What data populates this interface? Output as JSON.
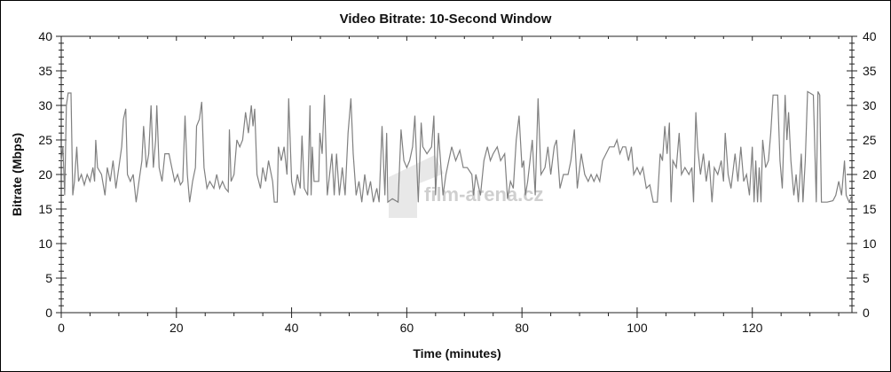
{
  "chart_data": {
    "type": "line",
    "title": "Video Bitrate: 10-Second Window",
    "xlabel": "Time (minutes)",
    "ylabel": "Bitrate (Mbps)",
    "xlim": [
      0,
      137.3
    ],
    "ylim": [
      0,
      40
    ],
    "x_ticks": [
      0,
      20,
      40,
      60,
      80,
      100,
      120
    ],
    "x_tick_labels": [
      "0",
      "20",
      "40",
      "60",
      "80",
      "100",
      "120"
    ],
    "y_ticks": [
      0,
      5,
      10,
      15,
      20,
      25,
      30,
      35,
      40
    ],
    "y_tick_labels": [
      "0",
      "5",
      "10",
      "15",
      "20",
      "25",
      "30",
      "35",
      "40"
    ],
    "right_axis_mirrors_left": true,
    "grid": false,
    "line_color": "#808080",
    "watermark": "film-arena.cz",
    "series": [
      {
        "points": [
          [
            0,
            22
          ],
          [
            0.3,
            24
          ],
          [
            0.6,
            17
          ],
          [
            0.9,
            30
          ],
          [
            1.2,
            31.8
          ],
          [
            1.7,
            31.8
          ],
          [
            2,
            17
          ],
          [
            2.3,
            19
          ],
          [
            2.7,
            24
          ],
          [
            3,
            19
          ],
          [
            3.5,
            20
          ],
          [
            4,
            18.5
          ],
          [
            4.5,
            20
          ],
          [
            5,
            19
          ],
          [
            5.5,
            21
          ],
          [
            5.8,
            19
          ],
          [
            6,
            25
          ],
          [
            6.3,
            21
          ],
          [
            7,
            20
          ],
          [
            7.6,
            17
          ],
          [
            8,
            21
          ],
          [
            8.5,
            19
          ],
          [
            9,
            22
          ],
          [
            9.5,
            18
          ],
          [
            10,
            21
          ],
          [
            10.5,
            24
          ],
          [
            10.8,
            28
          ],
          [
            11.2,
            29.5
          ],
          [
            11.5,
            20
          ],
          [
            12,
            19
          ],
          [
            12.5,
            20
          ],
          [
            13,
            16
          ],
          [
            13.5,
            19
          ],
          [
            14,
            22
          ],
          [
            14.3,
            27
          ],
          [
            14.8,
            21
          ],
          [
            15.2,
            23
          ],
          [
            15.6,
            30
          ],
          [
            16,
            21
          ],
          [
            16.4,
            25
          ],
          [
            16.6,
            30
          ],
          [
            17,
            21
          ],
          [
            17.5,
            19
          ],
          [
            18,
            23
          ],
          [
            18.7,
            23
          ],
          [
            19.2,
            21
          ],
          [
            19.7,
            19
          ],
          [
            20.2,
            20
          ],
          [
            20.7,
            18.5
          ],
          [
            21.1,
            19
          ],
          [
            21.5,
            28.5
          ],
          [
            21.9,
            20
          ],
          [
            22.3,
            16
          ],
          [
            22.8,
            19
          ],
          [
            23.3,
            21
          ],
          [
            23.5,
            27
          ],
          [
            24,
            28
          ],
          [
            24.4,
            30.5
          ],
          [
            24.8,
            21
          ],
          [
            25.3,
            18
          ],
          [
            25.8,
            19
          ],
          [
            26.5,
            18
          ],
          [
            27,
            20
          ],
          [
            27.5,
            18
          ],
          [
            28,
            19
          ],
          [
            28.5,
            18
          ],
          [
            29,
            17.5
          ],
          [
            29.2,
            26.5
          ],
          [
            29.5,
            19
          ],
          [
            30,
            20
          ],
          [
            30.5,
            25
          ],
          [
            31,
            24
          ],
          [
            31.5,
            25
          ],
          [
            32,
            29
          ],
          [
            32.5,
            26
          ],
          [
            33,
            30
          ],
          [
            33.3,
            27
          ],
          [
            33.6,
            29.5
          ],
          [
            34,
            20
          ],
          [
            34.6,
            18
          ],
          [
            35,
            21
          ],
          [
            35.5,
            19
          ],
          [
            36,
            22
          ],
          [
            36.7,
            19
          ],
          [
            37,
            16
          ],
          [
            37.5,
            16
          ],
          [
            37.7,
            24
          ],
          [
            38.2,
            22
          ],
          [
            38.7,
            24
          ],
          [
            39.2,
            20
          ],
          [
            39.5,
            31
          ],
          [
            40,
            19
          ],
          [
            40.5,
            17
          ],
          [
            41,
            20
          ],
          [
            41.5,
            18
          ],
          [
            41.8,
            25.6
          ],
          [
            42.2,
            18
          ],
          [
            42.8,
            17
          ],
          [
            43.2,
            30
          ],
          [
            43.4,
            17
          ],
          [
            43.6,
            24
          ],
          [
            43.9,
            19
          ],
          [
            44.7,
            19
          ],
          [
            44.9,
            26
          ],
          [
            45.3,
            23
          ],
          [
            45.7,
            31.5
          ],
          [
            46.2,
            17
          ],
          [
            46.6,
            20
          ],
          [
            47,
            23
          ],
          [
            47.4,
            17
          ],
          [
            47.8,
            23
          ],
          [
            48.3,
            17
          ],
          [
            48.8,
            21
          ],
          [
            49.3,
            17
          ],
          [
            49.8,
            26
          ],
          [
            50.3,
            31
          ],
          [
            50.7,
            23
          ],
          [
            51.2,
            17
          ],
          [
            51.7,
            19
          ],
          [
            52.2,
            16
          ],
          [
            52.7,
            20
          ],
          [
            53.2,
            17
          ],
          [
            53.7,
            19
          ],
          [
            54.2,
            16
          ],
          [
            54.8,
            18
          ],
          [
            55.2,
            16
          ],
          [
            55.7,
            27
          ],
          [
            56.2,
            17
          ],
          [
            56.5,
            26
          ],
          [
            56.7,
            16
          ],
          [
            57.5,
            16.5
          ],
          [
            58.5,
            16
          ],
          [
            59,
            26.5
          ],
          [
            59.5,
            22
          ],
          [
            60,
            21
          ],
          [
            60.5,
            22
          ],
          [
            61,
            24
          ],
          [
            61.4,
            28.5
          ],
          [
            62,
            16
          ],
          [
            62.5,
            27.5
          ],
          [
            62.8,
            24
          ],
          [
            63.5,
            23
          ],
          [
            64.3,
            24
          ],
          [
            64.7,
            28.5
          ],
          [
            65,
            17
          ],
          [
            65.5,
            26
          ],
          [
            66.3,
            17
          ],
          [
            66.8,
            20
          ],
          [
            67.3,
            22
          ],
          [
            67.8,
            24
          ],
          [
            68.5,
            22
          ],
          [
            69.2,
            23.5
          ],
          [
            69.8,
            21
          ],
          [
            70.5,
            21
          ],
          [
            71.3,
            20
          ],
          [
            71.6,
            17
          ],
          [
            72,
            20
          ],
          [
            72.8,
            17
          ],
          [
            73.4,
            22
          ],
          [
            74,
            24
          ],
          [
            74.5,
            22
          ],
          [
            75,
            23
          ],
          [
            75.7,
            24
          ],
          [
            76.3,
            22
          ],
          [
            77,
            23
          ],
          [
            77.5,
            16.5
          ],
          [
            78,
            19
          ],
          [
            78.5,
            18
          ],
          [
            79,
            25
          ],
          [
            79.5,
            28.5
          ],
          [
            80,
            21
          ],
          [
            80.3,
            22
          ],
          [
            80.6,
            17
          ],
          [
            81,
            19
          ],
          [
            81.8,
            25
          ],
          [
            82.3,
            17
          ],
          [
            82.8,
            31
          ],
          [
            83.3,
            20
          ],
          [
            84,
            21
          ],
          [
            84.5,
            24
          ],
          [
            85,
            20
          ],
          [
            85.6,
            24
          ],
          [
            86,
            25
          ],
          [
            86.6,
            18
          ],
          [
            87.2,
            20
          ],
          [
            88,
            20
          ],
          [
            88.5,
            22
          ],
          [
            89.1,
            26.5
          ],
          [
            89.6,
            18
          ],
          [
            90.3,
            23
          ],
          [
            90.9,
            20
          ],
          [
            91.5,
            19
          ],
          [
            92,
            20
          ],
          [
            92.5,
            19
          ],
          [
            93,
            20
          ],
          [
            93.5,
            19
          ],
          [
            94,
            22
          ],
          [
            94.6,
            23
          ],
          [
            95.2,
            24
          ],
          [
            96,
            24
          ],
          [
            96.5,
            25
          ],
          [
            97,
            23
          ],
          [
            97.5,
            24
          ],
          [
            98,
            24
          ],
          [
            98.5,
            22
          ],
          [
            99,
            24
          ],
          [
            99.4,
            20
          ],
          [
            100,
            21
          ],
          [
            100.5,
            20
          ],
          [
            101,
            21
          ],
          [
            101.6,
            18
          ],
          [
            102.2,
            18.5
          ],
          [
            102.8,
            16
          ],
          [
            103.5,
            16
          ],
          [
            104,
            23
          ],
          [
            104.4,
            22
          ],
          [
            104.8,
            27
          ],
          [
            105.2,
            23
          ],
          [
            105.6,
            27.5
          ],
          [
            105.9,
            16
          ],
          [
            106.2,
            22
          ],
          [
            106.8,
            21
          ],
          [
            107.3,
            26
          ],
          [
            107.7,
            20
          ],
          [
            108.3,
            21
          ],
          [
            109,
            20
          ],
          [
            109.5,
            21
          ],
          [
            109.8,
            16
          ],
          [
            110.2,
            29
          ],
          [
            110.5,
            24
          ],
          [
            111,
            20
          ],
          [
            111.5,
            23
          ],
          [
            112,
            19
          ],
          [
            112.5,
            22
          ],
          [
            113,
            16
          ],
          [
            113.4,
            21
          ],
          [
            114,
            20
          ],
          [
            114.6,
            22
          ],
          [
            115,
            19
          ],
          [
            115.3,
            26
          ],
          [
            115.8,
            20
          ],
          [
            116.3,
            18
          ],
          [
            117,
            23
          ],
          [
            117.5,
            19
          ],
          [
            118,
            24
          ],
          [
            118.5,
            19
          ],
          [
            119,
            20
          ],
          [
            119.5,
            17
          ],
          [
            120,
            24
          ],
          [
            120.3,
            16
          ],
          [
            120.6,
            22
          ],
          [
            120.9,
            16
          ],
          [
            121.2,
            21
          ],
          [
            121.5,
            16
          ],
          [
            121.8,
            25
          ],
          [
            122.3,
            21
          ],
          [
            122.8,
            22
          ],
          [
            123.2,
            26
          ],
          [
            123.6,
            31.5
          ],
          [
            124.4,
            31.5
          ],
          [
            124.8,
            22
          ],
          [
            125.2,
            18
          ],
          [
            125.7,
            31.5
          ],
          [
            126,
            25
          ],
          [
            126.3,
            29
          ],
          [
            126.7,
            22
          ],
          [
            127.2,
            17
          ],
          [
            127.6,
            20
          ],
          [
            128,
            16
          ],
          [
            128.5,
            23
          ],
          [
            128.8,
            16
          ],
          [
            129.2,
            22
          ],
          [
            129.6,
            32
          ],
          [
            130.6,
            31.5
          ],
          [
            131.1,
            16
          ],
          [
            131.4,
            32
          ],
          [
            131.7,
            31.5
          ],
          [
            132,
            16
          ],
          [
            133,
            16
          ],
          [
            134,
            16.2
          ],
          [
            134.5,
            17
          ],
          [
            135,
            19
          ],
          [
            135.5,
            17
          ],
          [
            136,
            22
          ],
          [
            136.3,
            17
          ],
          [
            136.8,
            16
          ],
          [
            137.3,
            17
          ]
        ]
      }
    ]
  }
}
